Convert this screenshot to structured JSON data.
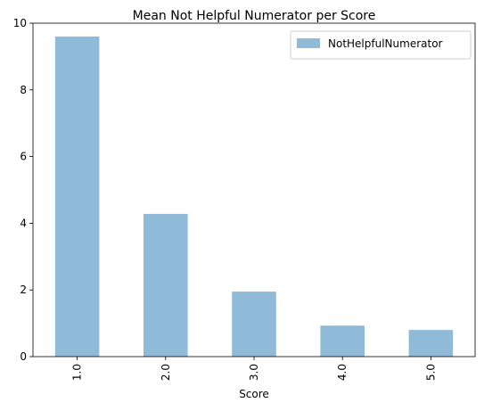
{
  "chart_data": {
    "type": "bar",
    "title": "Mean Not Helpful Numerator per Score",
    "xlabel": "Score",
    "ylabel": "",
    "categories": [
      "1.0",
      "2.0",
      "3.0",
      "4.0",
      "5.0"
    ],
    "series": [
      {
        "name": "NotHelpfulNumerator",
        "values": [
          9.6,
          4.28,
          1.95,
          0.93,
          0.8
        ]
      }
    ],
    "ylim": [
      0,
      10
    ],
    "yticks": [
      0,
      2,
      4,
      6,
      8,
      10
    ],
    "grid": false,
    "legend": "top-right",
    "bar_color": "#8fbbd9"
  }
}
